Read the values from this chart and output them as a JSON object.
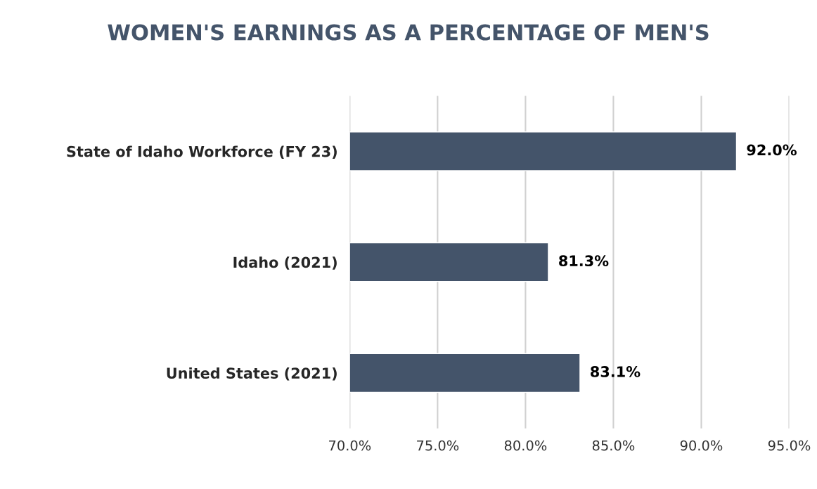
{
  "chart_data": {
    "type": "bar",
    "orientation": "horizontal",
    "title": "WOMEN'S EARNINGS AS A PERCENTAGE OF MEN'S",
    "categories": [
      "State of Idaho Workforce (FY 23)",
      "Idaho (2021)",
      "United States (2021)"
    ],
    "values": [
      92.0,
      81.3,
      83.1
    ],
    "color": "#44546a",
    "value_labels": [
      "92.0%",
      "81.3%",
      "83.1%"
    ],
    "xlim": [
      70,
      95
    ],
    "xticks": [
      {
        "value": 70,
        "label": "70.0%"
      },
      {
        "value": 75,
        "label": "75.0%"
      },
      {
        "value": 80,
        "label": "80.0%"
      },
      {
        "value": 85,
        "label": "85.0%"
      },
      {
        "value": 90,
        "label": "90.0%"
      },
      {
        "value": 95,
        "label": "95.0%"
      }
    ],
    "grid": "x"
  }
}
